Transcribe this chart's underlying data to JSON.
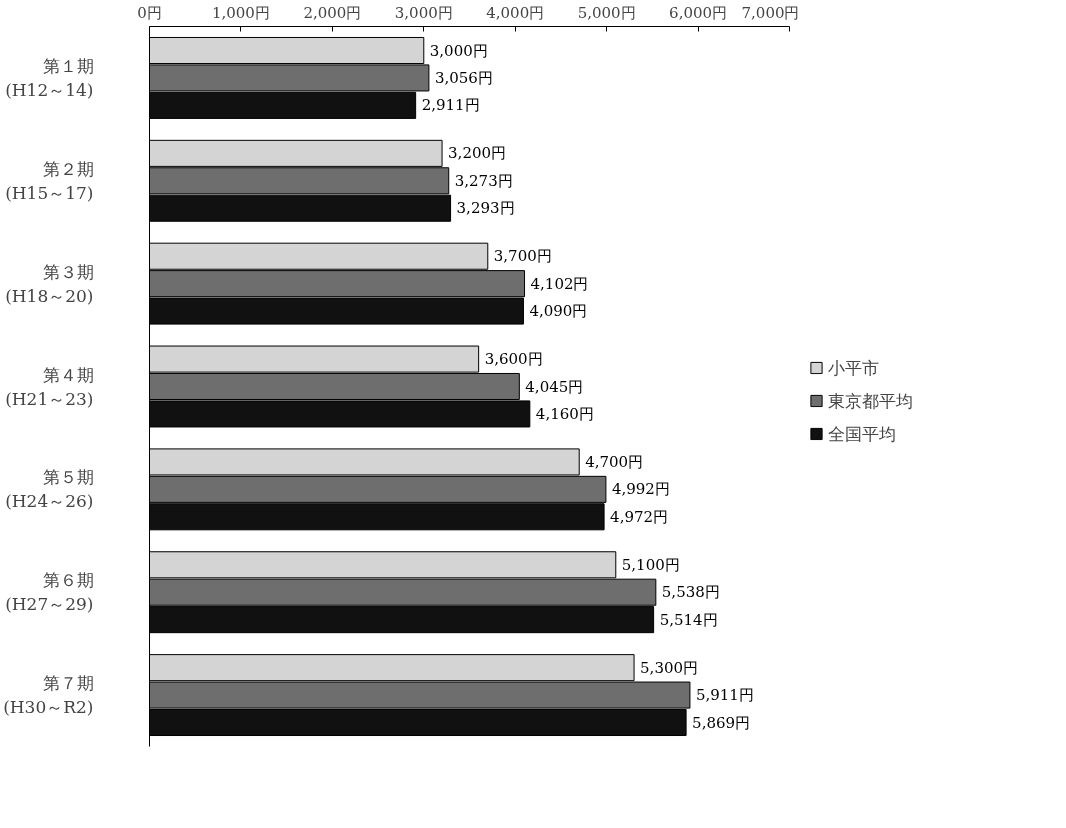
{
  "chart_data": {
    "type": "bar",
    "orientation": "horizontal",
    "categories": [
      "第１期\n(H12～14)",
      "第２期\n(H15～17)",
      "第３期\n(H18～20)",
      "第４期\n(H21～23)",
      "第５期\n(H24～26)",
      "第６期\n(H27～29)",
      "第７期\n(H30～R2)"
    ],
    "series": [
      {
        "name": "小平市",
        "color": "#d4d4d4",
        "values": [
          3000,
          3200,
          3700,
          3600,
          4700,
          5100,
          5300
        ],
        "value_labels": [
          "3,000円",
          "3,200円",
          "3,700円",
          "3,600円",
          "4,700円",
          "5,100円",
          "5,300円"
        ]
      },
      {
        "name": "東京都平均",
        "color": "#6e6e6e",
        "values": [
          3056,
          3273,
          4102,
          4045,
          4992,
          5538,
          5911
        ],
        "value_labels": [
          "3,056円",
          "3,273円",
          "4,102円",
          "4,045円",
          "4,992円",
          "5,538円",
          "5,911円"
        ]
      },
      {
        "name": "全国平均",
        "color": "#111111",
        "values": [
          2911,
          3293,
          4090,
          4160,
          4972,
          5514,
          5869
        ],
        "value_labels": [
          "2,911円",
          "3,293円",
          "4,090円",
          "4,160円",
          "4,972円",
          "5,514円",
          "5,869円"
        ]
      }
    ],
    "xlim": [
      0,
      7000
    ],
    "xticks": [
      {
        "value": 0,
        "label": "0円"
      },
      {
        "value": 1000,
        "label": "1,000円"
      },
      {
        "value": 2000,
        "label": "2,000円"
      },
      {
        "value": 3000,
        "label": "3,000円"
      },
      {
        "value": 4000,
        "label": "4,000円"
      },
      {
        "value": 5000,
        "label": "5,000円"
      },
      {
        "value": 6000,
        "label": "6,000円"
      },
      {
        "value": 7000,
        "label": "7,000円"
      }
    ],
    "grid": false,
    "legend": "right"
  }
}
